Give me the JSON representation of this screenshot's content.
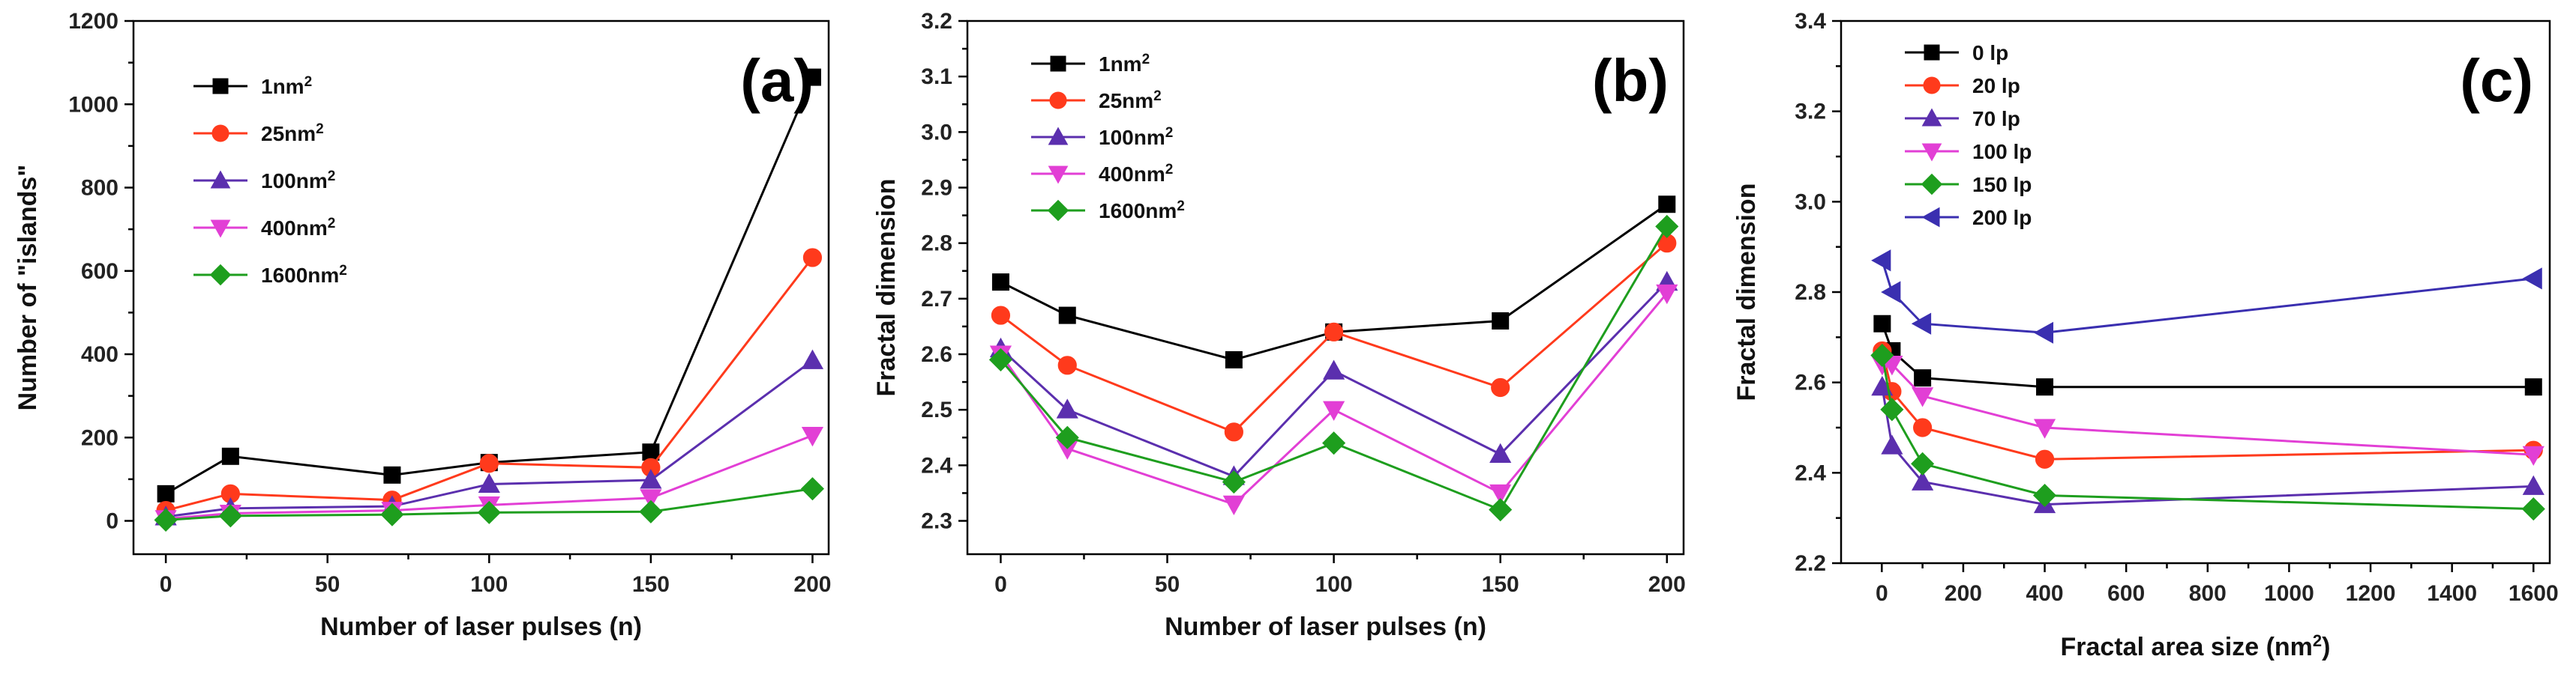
{
  "chart_data": [
    {
      "type": "line",
      "panel_label": "(a)",
      "xlabel": "Number of laser pulses (n)",
      "ylabel": "Number of  \"islands\"",
      "x": [
        0,
        20,
        70,
        100,
        150,
        200
      ],
      "xlim": [
        -10,
        205
      ],
      "ylim": [
        -80,
        1200
      ],
      "xticks": [
        0,
        50,
        100,
        150,
        200
      ],
      "yticks": [
        0,
        200,
        400,
        600,
        800,
        1000,
        1200
      ],
      "legend_position": "top-left",
      "grid": false,
      "series": [
        {
          "name": "1nm",
          "sup": "2",
          "color": "#000000",
          "marker": "square",
          "values": [
            65,
            155,
            110,
            140,
            165,
            1065
          ]
        },
        {
          "name": "25nm",
          "sup": "2",
          "color": "#ff3a1c",
          "marker": "circle",
          "values": [
            25,
            65,
            50,
            138,
            128,
            632
          ]
        },
        {
          "name": "100nm",
          "sup": "2",
          "color": "#5b2fae",
          "marker": "triangle-up",
          "values": [
            10,
            30,
            35,
            88,
            98,
            385
          ]
        },
        {
          "name": "400nm",
          "sup": "2",
          "color": "#e23fd5",
          "marker": "triangle-down",
          "values": [
            5,
            18,
            25,
            38,
            55,
            205
          ]
        },
        {
          "name": "1600nm",
          "sup": "2",
          "color": "#1e9e1e",
          "marker": "diamond",
          "values": [
            2,
            12,
            15,
            20,
            22,
            77
          ]
        }
      ]
    },
    {
      "type": "line",
      "panel_label": "(b)",
      "xlabel": "Number of laser pulses (n)",
      "ylabel": "Fractal dimension",
      "x": [
        0,
        20,
        70,
        100,
        150,
        200
      ],
      "xlim": [
        -10,
        205
      ],
      "ylim": [
        2.24,
        3.2
      ],
      "xticks": [
        0,
        50,
        100,
        150,
        200
      ],
      "yticks": [
        2.3,
        2.4,
        2.5,
        2.6,
        2.7,
        2.8,
        2.9,
        3.0,
        3.1,
        3.2
      ],
      "legend_position": "top-left",
      "grid": false,
      "series": [
        {
          "name": "1nm",
          "sup": "2",
          "color": "#000000",
          "marker": "square",
          "values": [
            2.73,
            2.67,
            2.59,
            2.64,
            2.66,
            2.87
          ]
        },
        {
          "name": "25nm",
          "sup": "2",
          "color": "#ff3a1c",
          "marker": "circle",
          "values": [
            2.67,
            2.58,
            2.46,
            2.64,
            2.54,
            2.8
          ]
        },
        {
          "name": "100nm",
          "sup": "2",
          "color": "#5b2fae",
          "marker": "triangle-up",
          "values": [
            2.61,
            2.5,
            2.38,
            2.57,
            2.42,
            2.73
          ]
        },
        {
          "name": "400nm",
          "sup": "2",
          "color": "#e23fd5",
          "marker": "triangle-down",
          "values": [
            2.6,
            2.43,
            2.33,
            2.5,
            2.35,
            2.71
          ]
        },
        {
          "name": "1600nm",
          "sup": "2",
          "color": "#1e9e1e",
          "marker": "diamond",
          "values": [
            2.59,
            2.45,
            2.37,
            2.44,
            2.32,
            2.83
          ]
        }
      ]
    },
    {
      "type": "line",
      "panel_label": "(c)",
      "xlabel": "Fractal area size (nm",
      "xlabel_sup": "2",
      "xlabel_close": ")",
      "ylabel": "Fractal dimension",
      "x": [
        1,
        25,
        100,
        400,
        1600
      ],
      "xlim": [
        -100,
        1640
      ],
      "ylim": [
        2.2,
        3.4
      ],
      "xticks": [
        0,
        200,
        400,
        600,
        800,
        1000,
        1200,
        1400,
        1600
      ],
      "yticks": [
        2.2,
        2.4,
        2.6,
        2.8,
        3.0,
        3.2,
        3.4
      ],
      "legend_position": "top-left",
      "grid": false,
      "series": [
        {
          "name": "0 lp",
          "color": "#000000",
          "marker": "square",
          "values": [
            2.73,
            2.67,
            2.61,
            2.59,
            2.59
          ]
        },
        {
          "name": "20 lp",
          "color": "#ff3a1c",
          "marker": "circle",
          "values": [
            2.67,
            2.58,
            2.5,
            2.43,
            2.45
          ]
        },
        {
          "name": "70 lp",
          "color": "#5b2fae",
          "marker": "triangle-up",
          "values": [
            2.59,
            2.46,
            2.38,
            2.33,
            2.37
          ]
        },
        {
          "name": "100 lp",
          "color": "#e23fd5",
          "marker": "triangle-down",
          "values": [
            2.64,
            2.64,
            2.57,
            2.5,
            2.44
          ]
        },
        {
          "name": "150 lp",
          "color": "#1e9e1e",
          "marker": "diamond",
          "values": [
            2.66,
            2.54,
            2.42,
            2.35,
            2.32
          ]
        },
        {
          "name": "200 lp",
          "color": "#3a2fb0",
          "marker": "triangle-left",
          "values": [
            2.87,
            2.8,
            2.73,
            2.71,
            2.83
          ]
        }
      ]
    }
  ]
}
